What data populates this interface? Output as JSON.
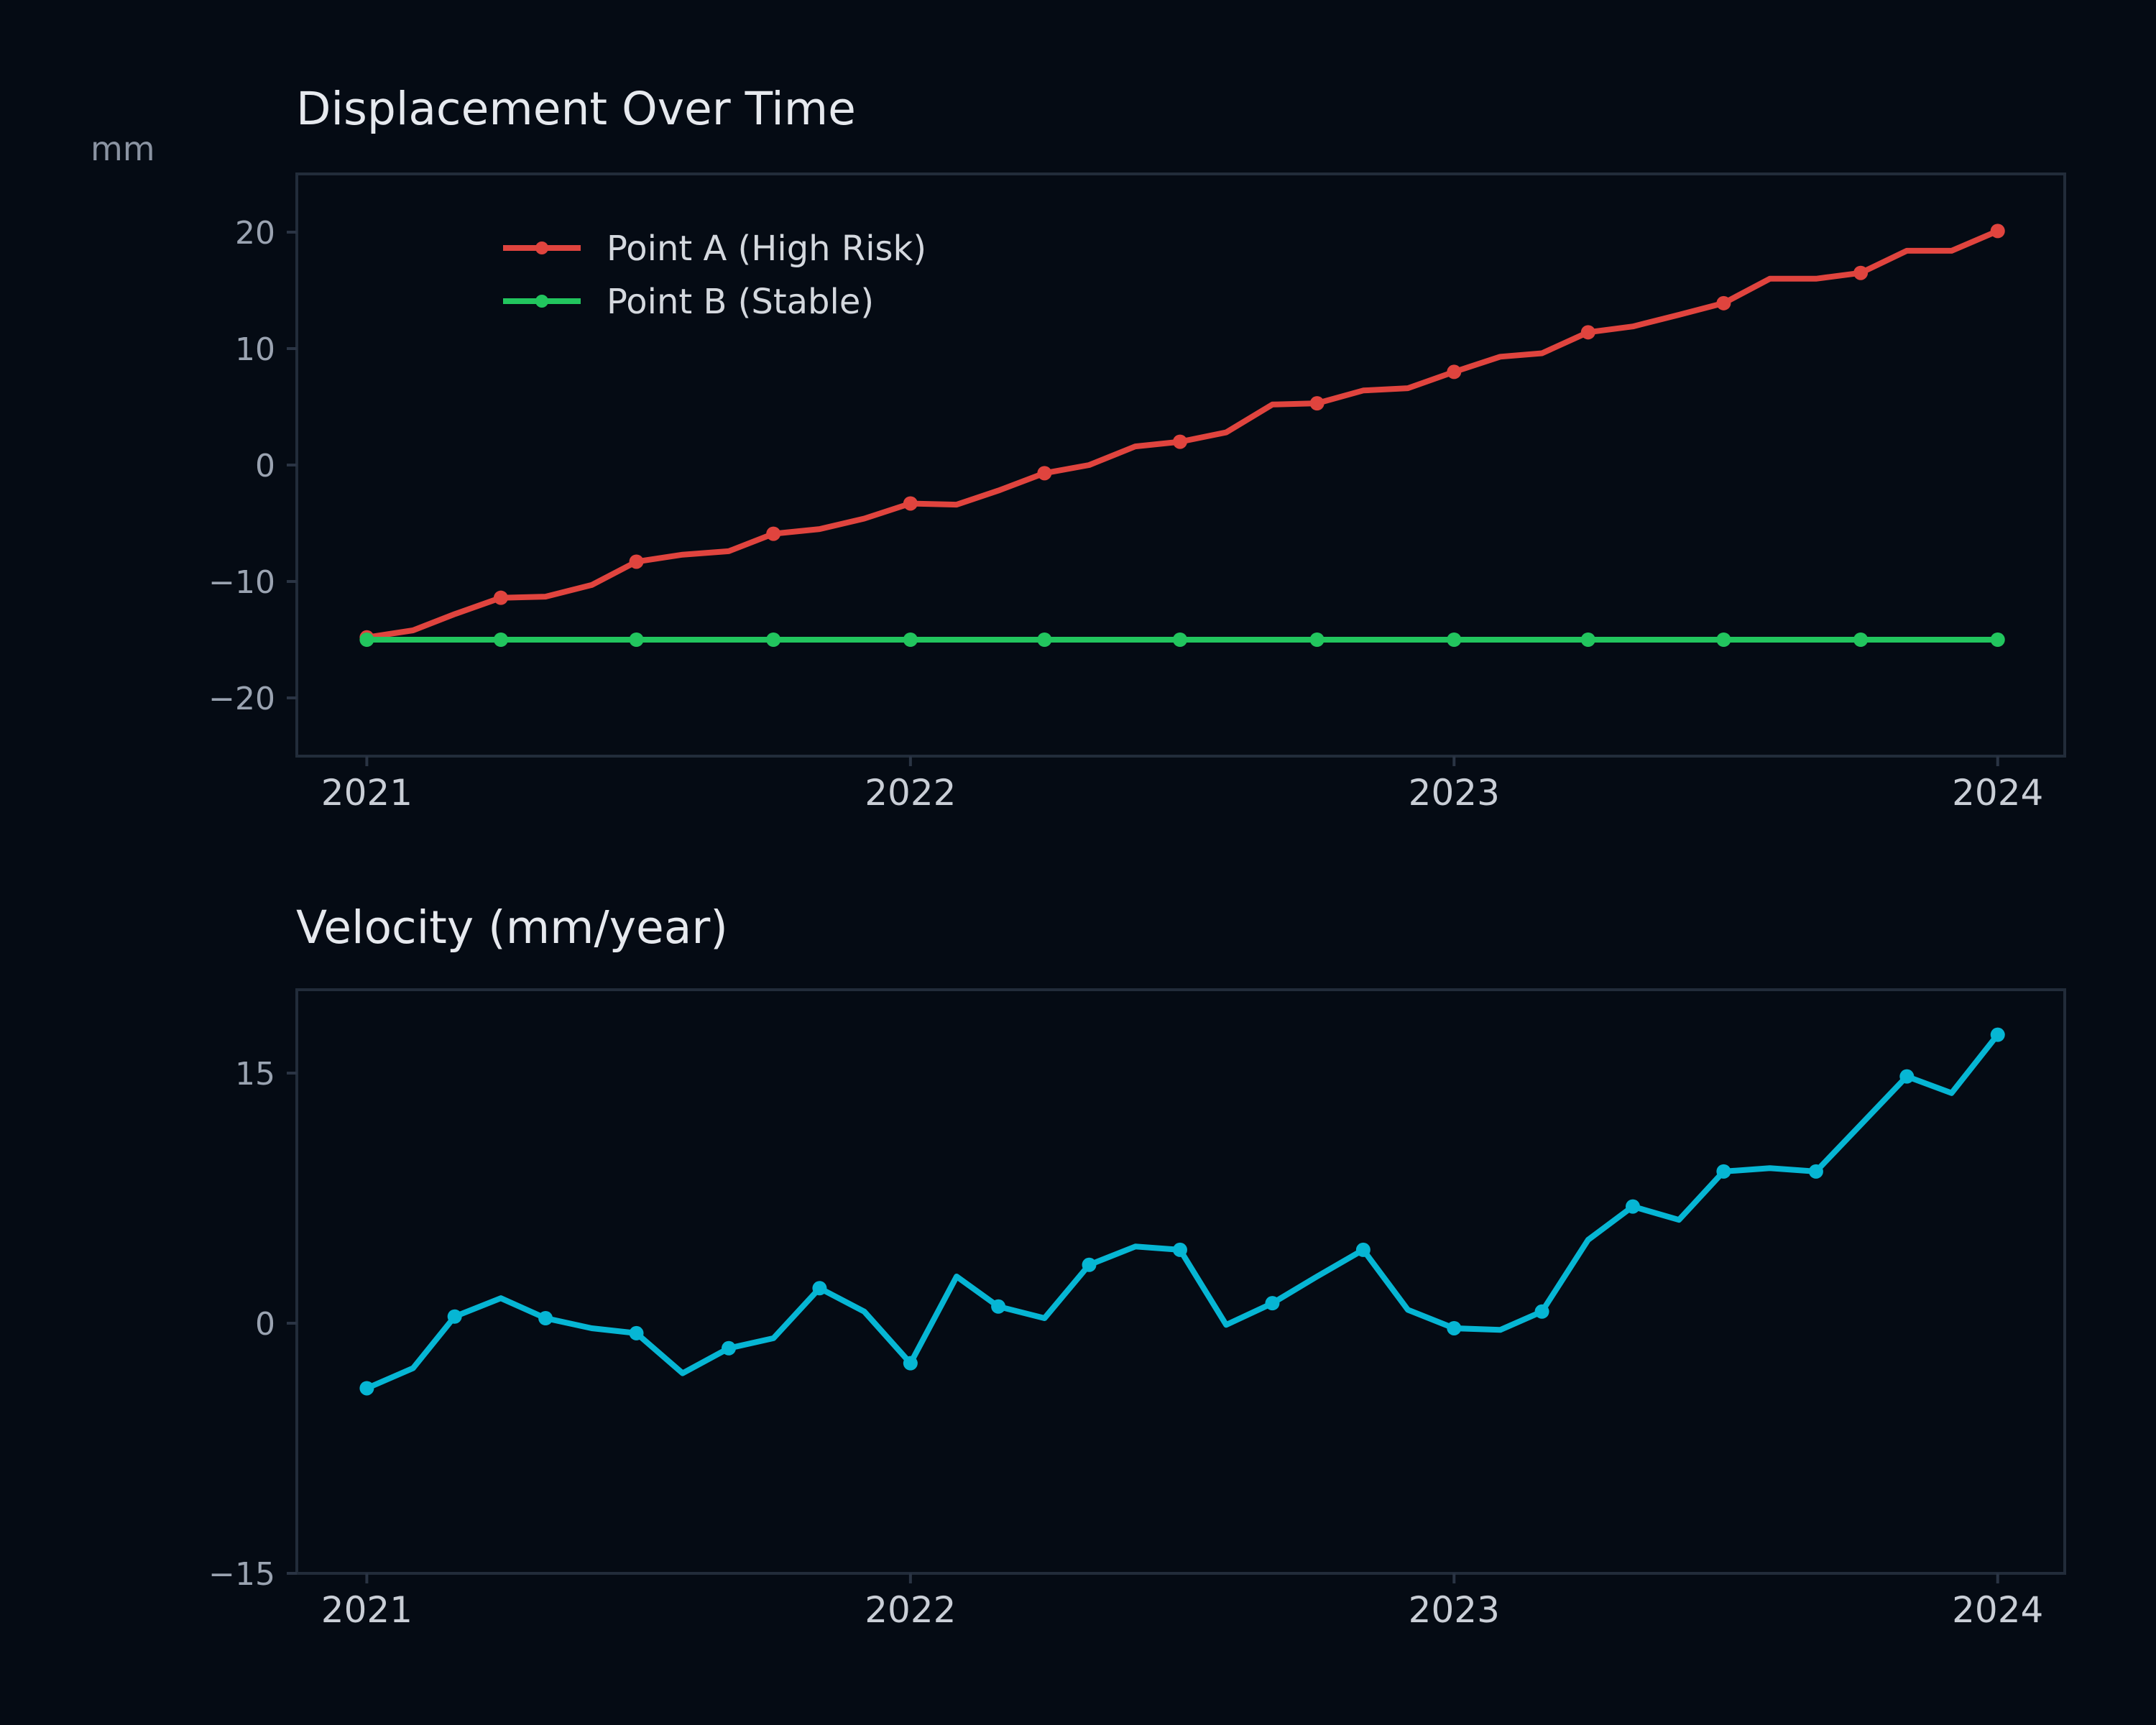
{
  "colors": {
    "background": "#050b14",
    "point_a": "#e0443e",
    "point_b": "#22c55e",
    "velocity": "#06b6d4"
  },
  "chart_data": [
    {
      "type": "line",
      "title": "Displacement Over Time",
      "ylabel": "mm",
      "xlabel": "",
      "xlim": [
        "2020-11-15",
        "2024-02-15"
      ],
      "ylim": [
        -25,
        25
      ],
      "xticks": [
        "2021",
        "2022",
        "2023",
        "2024"
      ],
      "yticks": [
        20,
        10,
        0,
        -10,
        -20
      ],
      "ytick_labels": [
        "20",
        "10",
        "0",
        "−10",
        "−20"
      ],
      "grid": false,
      "legend_position": "upper-left",
      "series": [
        {
          "name": "Point A (High Risk)",
          "color": "#e0443e",
          "points": [
            [
              "2021-01-01",
              -14.8
            ],
            [
              "2021-02-01",
              -14.2
            ],
            [
              "2021-03-01",
              -12.8
            ],
            [
              "2021-04-01",
              -11.4
            ],
            [
              "2021-05-01",
              -11.3
            ],
            [
              "2021-06-01",
              -10.3
            ],
            [
              "2021-07-01",
              -8.3
            ],
            [
              "2021-08-01",
              -7.7
            ],
            [
              "2021-09-01",
              -7.4
            ],
            [
              "2021-10-01",
              -5.9
            ],
            [
              "2021-11-01",
              -5.5
            ],
            [
              "2021-12-01",
              -4.6
            ],
            [
              "2022-01-01",
              -3.3
            ],
            [
              "2022-02-01",
              -3.4
            ],
            [
              "2022-03-01",
              -2.2
            ],
            [
              "2022-04-01",
              -0.7
            ],
            [
              "2022-05-01",
              0.0
            ],
            [
              "2022-06-01",
              1.6
            ],
            [
              "2022-07-01",
              2.0
            ],
            [
              "2022-08-01",
              2.8
            ],
            [
              "2022-09-01",
              5.2
            ],
            [
              "2022-10-01",
              5.3
            ],
            [
              "2022-11-01",
              6.4
            ],
            [
              "2022-12-01",
              6.6
            ],
            [
              "2023-01-01",
              8.0
            ],
            [
              "2023-02-01",
              9.3
            ],
            [
              "2023-03-01",
              9.6
            ],
            [
              "2023-04-01",
              11.4
            ],
            [
              "2023-05-01",
              11.9
            ],
            [
              "2023-06-01",
              12.9
            ],
            [
              "2023-07-01",
              13.9
            ],
            [
              "2023-08-01",
              16.0
            ],
            [
              "2023-09-01",
              16.0
            ],
            [
              "2023-10-01",
              16.5
            ],
            [
              "2023-11-01",
              18.4
            ],
            [
              "2023-12-01",
              18.4
            ],
            [
              "2024-01-01",
              20.1
            ]
          ],
          "marker_every": 3
        },
        {
          "name": "Point B (Stable)",
          "color": "#22c55e",
          "points": [
            [
              "2021-01-01",
              -15
            ],
            [
              "2021-02-01",
              -15
            ],
            [
              "2021-03-01",
              -15
            ],
            [
              "2021-04-01",
              -15
            ],
            [
              "2021-05-01",
              -15
            ],
            [
              "2021-06-01",
              -15
            ],
            [
              "2021-07-01",
              -15
            ],
            [
              "2021-08-01",
              -15
            ],
            [
              "2021-09-01",
              -15
            ],
            [
              "2021-10-01",
              -15
            ],
            [
              "2021-11-01",
              -15
            ],
            [
              "2021-12-01",
              -15
            ],
            [
              "2022-01-01",
              -15
            ],
            [
              "2022-02-01",
              -15
            ],
            [
              "2022-03-01",
              -15
            ],
            [
              "2022-04-01",
              -15
            ],
            [
              "2022-05-01",
              -15
            ],
            [
              "2022-06-01",
              -15
            ],
            [
              "2022-07-01",
              -15
            ],
            [
              "2022-08-01",
              -15
            ],
            [
              "2022-09-01",
              -15
            ],
            [
              "2022-10-01",
              -15
            ],
            [
              "2022-11-01",
              -15
            ],
            [
              "2022-12-01",
              -15
            ],
            [
              "2023-01-01",
              -15
            ],
            [
              "2023-02-01",
              -15
            ],
            [
              "2023-03-01",
              -15
            ],
            [
              "2023-04-01",
              -15
            ],
            [
              "2023-05-01",
              -15
            ],
            [
              "2023-06-01",
              -15
            ],
            [
              "2023-07-01",
              -15
            ],
            [
              "2023-08-01",
              -15
            ],
            [
              "2023-09-01",
              -15
            ],
            [
              "2023-10-01",
              -15
            ],
            [
              "2023-11-01",
              -15
            ],
            [
              "2023-12-01",
              -15
            ],
            [
              "2024-01-01",
              -15
            ]
          ],
          "marker_every": 3
        }
      ]
    },
    {
      "type": "line",
      "title": "Velocity (mm/year)",
      "ylabel": "",
      "xlabel": "",
      "xlim": [
        "2020-11-15",
        "2024-02-15"
      ],
      "ylim": [
        -15,
        20
      ],
      "xticks": [
        "2021",
        "2022",
        "2023",
        "2024"
      ],
      "yticks": [
        15,
        0,
        -15
      ],
      "ytick_labels": [
        "15",
        "0",
        "−15"
      ],
      "grid": false,
      "series": [
        {
          "color": "#06b6d4",
          "points": [
            [
              "2021-01-01",
              -3.9
            ],
            [
              "2021-02-01",
              -2.7
            ],
            [
              "2021-03-01",
              0.4
            ],
            [
              "2021-04-01",
              1.5
            ],
            [
              "2021-05-01",
              0.3
            ],
            [
              "2021-06-01",
              -0.3
            ],
            [
              "2021-07-01",
              -0.6
            ],
            [
              "2021-08-01",
              -3.0
            ],
            [
              "2021-09-01",
              -1.5
            ],
            [
              "2021-10-01",
              -0.9
            ],
            [
              "2021-11-01",
              2.1
            ],
            [
              "2021-12-01",
              0.7
            ],
            [
              "2022-01-01",
              -2.4
            ],
            [
              "2022-02-01",
              2.8
            ],
            [
              "2022-03-01",
              1.0
            ],
            [
              "2022-04-01",
              0.3
            ],
            [
              "2022-05-01",
              3.5
            ],
            [
              "2022-06-01",
              4.6
            ],
            [
              "2022-07-01",
              4.4
            ],
            [
              "2022-08-01",
              -0.1
            ],
            [
              "2022-09-01",
              1.2
            ],
            [
              "2022-10-01",
              2.8
            ],
            [
              "2022-11-01",
              4.4
            ],
            [
              "2022-12-01",
              0.8
            ],
            [
              "2023-01-01",
              -0.3
            ],
            [
              "2023-02-01",
              -0.4
            ],
            [
              "2023-03-01",
              0.7
            ],
            [
              "2023-04-01",
              5.0
            ],
            [
              "2023-05-01",
              7.0
            ],
            [
              "2023-06-01",
              6.2
            ],
            [
              "2023-07-01",
              9.1
            ],
            [
              "2023-08-01",
              9.3
            ],
            [
              "2023-09-01",
              9.1
            ],
            [
              "2023-10-01",
              11.9
            ],
            [
              "2023-11-01",
              14.8
            ],
            [
              "2023-12-01",
              13.8
            ],
            [
              "2024-01-01",
              17.3
            ]
          ],
          "marker_indices": [
            0,
            2,
            4,
            6,
            8,
            10,
            12,
            14,
            16,
            18,
            20,
            22,
            24,
            26,
            28,
            30,
            32,
            34,
            36
          ]
        }
      ]
    }
  ]
}
